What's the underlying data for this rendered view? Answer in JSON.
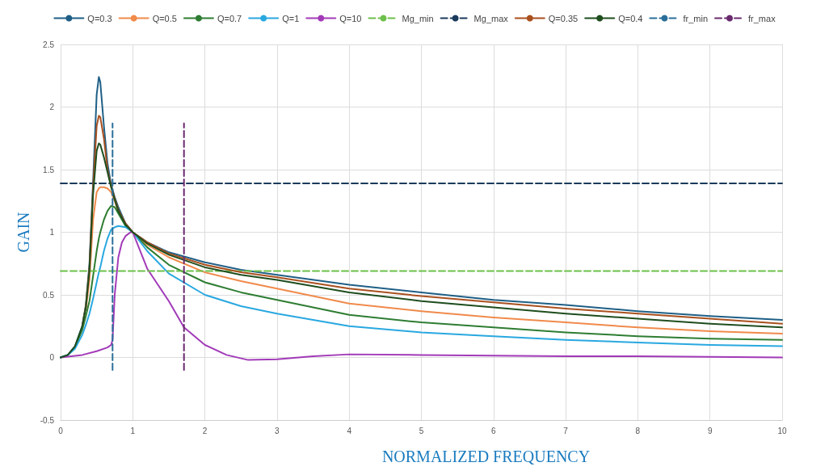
{
  "chart_data": {
    "type": "line",
    "xlabel": "NORMALIZED FREQUENCY",
    "ylabel": "GAIN",
    "x": [
      0,
      0.1,
      0.2,
      0.3,
      0.35,
      0.4,
      0.45,
      0.5,
      0.53,
      0.55,
      0.6,
      0.65,
      0.7,
      0.75,
      0.8,
      0.9,
      1,
      1.2,
      1.5,
      2,
      2.5,
      3,
      4,
      5,
      6,
      7,
      8,
      9,
      10
    ],
    "series": [
      {
        "name": "Q=0.3",
        "color": "#1f5f86",
        "values": [
          0,
          0.02,
          0.09,
          0.25,
          0.42,
          0.75,
          1.4,
          2.1,
          2.24,
          2.2,
          1.85,
          1.55,
          1.38,
          1.28,
          1.2,
          1.07,
          1,
          0.92,
          0.84,
          0.76,
          0.7,
          0.66,
          0.58,
          0.52,
          0.46,
          0.42,
          0.37,
          0.33,
          0.3
        ]
      },
      {
        "name": "Q=0.5",
        "color": "#f08a4b",
        "values": [
          null,
          null,
          null,
          null,
          0.38,
          0.62,
          1.1,
          1.32,
          1.35,
          1.36,
          1.36,
          1.35,
          1.32,
          1.25,
          1.16,
          1.06,
          1,
          0.9,
          0.8,
          0.68,
          0.61,
          0.55,
          0.43,
          0.37,
          0.32,
          0.28,
          0.24,
          0.21,
          0.19
        ]
      },
      {
        "name": "Q=0.7",
        "color": "#2e7d32",
        "values": [
          0,
          0.02,
          0.08,
          0.22,
          0.33,
          0.45,
          0.65,
          0.85,
          0.95,
          1.0,
          1.1,
          1.17,
          1.21,
          1.2,
          1.15,
          1.05,
          1,
          0.88,
          0.74,
          0.6,
          0.52,
          0.46,
          0.34,
          0.28,
          0.24,
          0.2,
          0.17,
          0.15,
          0.14
        ]
      },
      {
        "name": "Q=1",
        "color": "#29a8e0",
        "values": [
          0,
          0.02,
          0.07,
          0.18,
          0.26,
          0.35,
          0.47,
          0.6,
          0.68,
          0.72,
          0.85,
          0.95,
          1.02,
          1.04,
          1.05,
          1.04,
          1,
          0.85,
          0.67,
          0.5,
          0.41,
          0.35,
          0.25,
          0.2,
          0.17,
          0.14,
          0.12,
          0.1,
          0.09
        ]
      },
      {
        "name": "Q=10",
        "color": "#a23ab8",
        "x": [
          0,
          0.3,
          0.5,
          0.65,
          0.7,
          0.72,
          0.75,
          0.8,
          0.85,
          0.9,
          0.97,
          1,
          1.2,
          1.5,
          1.71,
          2,
          2.3,
          2.6,
          3,
          3.5,
          4,
          5,
          6,
          7,
          8,
          9,
          10
        ],
        "values": [
          0,
          0.02,
          0.05,
          0.08,
          0.1,
          0.14,
          0.5,
          0.8,
          0.92,
          0.97,
          1.0,
          1.0,
          0.71,
          0.45,
          0.24,
          0.1,
          0.02,
          -0.02,
          -0.015,
          0.01,
          0.025,
          0.02,
          0.015,
          0.01,
          0.01,
          0.005,
          0
        ]
      },
      {
        "name": "Mg_min",
        "color": "#6cc04a",
        "line_style": "dashed",
        "x": [
          0,
          10
        ],
        "values": [
          0.69,
          0.69
        ]
      },
      {
        "name": "Mg_max",
        "color": "#1b3a5c",
        "line_style": "dashed",
        "x": [
          0,
          10
        ],
        "values": [
          1.39,
          1.39
        ]
      },
      {
        "name": "Q=0.35",
        "color": "#a9501f",
        "values": [
          null,
          null,
          null,
          0.25,
          0.41,
          0.72,
          1.35,
          1.85,
          1.93,
          1.92,
          1.75,
          1.5,
          1.37,
          1.27,
          1.18,
          1.07,
          1,
          0.92,
          0.83,
          0.74,
          0.68,
          0.64,
          0.55,
          0.49,
          0.44,
          0.39,
          0.35,
          0.31,
          0.27
        ]
      },
      {
        "name": "Q=0.4",
        "color": "#1e4d1e",
        "values": [
          0,
          0.02,
          0.09,
          0.25,
          0.4,
          0.7,
          1.3,
          1.65,
          1.71,
          1.7,
          1.6,
          1.48,
          1.36,
          1.26,
          1.17,
          1.06,
          1,
          0.91,
          0.82,
          0.72,
          0.66,
          0.62,
          0.52,
          0.45,
          0.4,
          0.35,
          0.31,
          0.27,
          0.24
        ]
      },
      {
        "name": "fr_min",
        "color": "#2a6f9a",
        "line_style": "dashed",
        "x": [
          0.72,
          0.72
        ],
        "values": [
          -0.1,
          1.87
        ]
      },
      {
        "name": "fr_max",
        "color": "#6a2a6e",
        "line_style": "dashed",
        "x": [
          1.71,
          1.71
        ],
        "values": [
          -0.1,
          1.87
        ]
      }
    ],
    "xlim": [
      0,
      10
    ],
    "xticks": [
      0,
      1,
      2,
      3,
      4,
      5,
      6,
      7,
      8,
      9,
      10
    ],
    "ylim": [
      -0.5,
      2.5
    ],
    "yticks": [
      -0.5,
      0,
      0.5,
      1,
      1.5,
      2,
      2.5
    ],
    "grid": true,
    "legend": "top",
    "marker": "none",
    "line_style": "solid"
  }
}
